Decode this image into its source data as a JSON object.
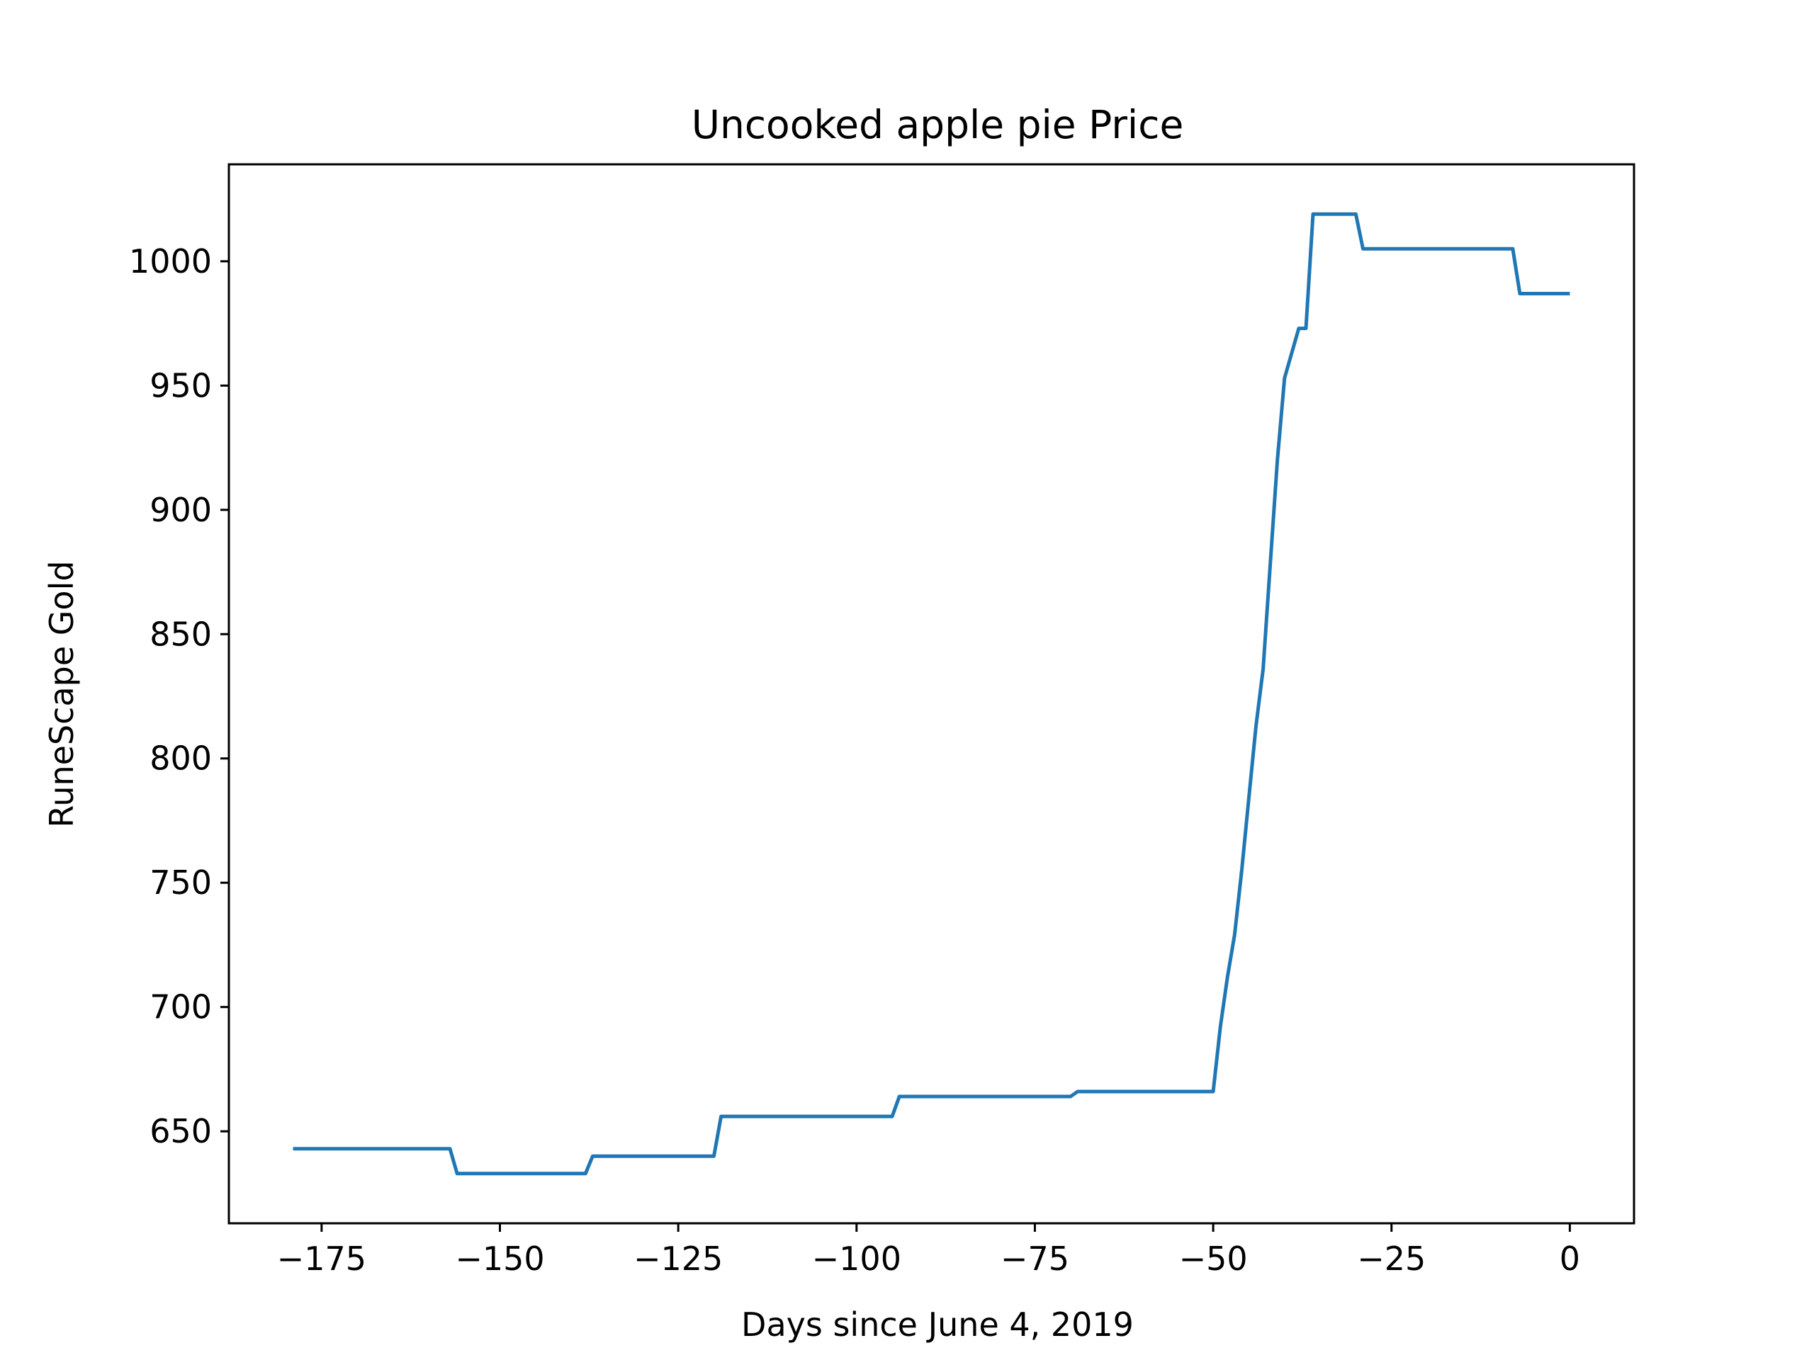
{
  "chart_data": {
    "type": "line",
    "title": "Uncooked apple pie Price",
    "xlabel": "Days since June 4, 2019",
    "ylabel": "RuneScape Gold",
    "xlim": [
      -188,
      9
    ],
    "ylim": [
      613,
      1039
    ],
    "xticks": [
      -175,
      -150,
      -125,
      -100,
      -75,
      -50,
      -25,
      0
    ],
    "xtick_labels": [
      "−175",
      "−150",
      "−125",
      "−100",
      "−75",
      "−50",
      "−25",
      "0"
    ],
    "yticks": [
      650,
      700,
      750,
      800,
      850,
      900,
      950,
      1000
    ],
    "ytick_labels": [
      "650",
      "700",
      "750",
      "800",
      "850",
      "900",
      "950",
      "1000"
    ],
    "grid": false,
    "series": [
      {
        "color": "#1f77b4",
        "x": [
          -179,
          -157,
          -156,
          -138,
          -137,
          -120,
          -119,
          -95,
          -94,
          -70,
          -69,
          -50,
          -49,
          -48,
          -47,
          -46,
          -45,
          -44,
          -43,
          -42,
          -41,
          -40,
          -38,
          -37,
          -36,
          -35,
          -30,
          -29,
          -8,
          -7,
          0
        ],
        "y": [
          643,
          643,
          633,
          633,
          640,
          640,
          656,
          656,
          664,
          664,
          666,
          666,
          692,
          712,
          729,
          755,
          784,
          813,
          836,
          878,
          920,
          953,
          973,
          973,
          1019,
          1019,
          1019,
          1005,
          1005,
          987,
          987
        ]
      }
    ]
  }
}
